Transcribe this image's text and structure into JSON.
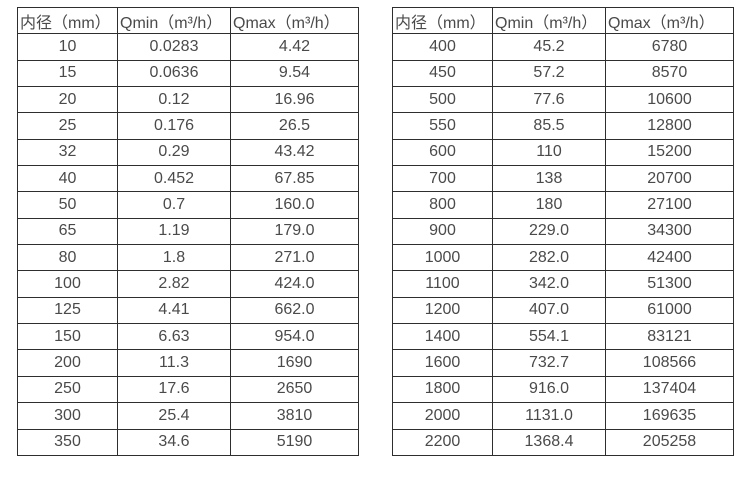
{
  "colors": {
    "text": "#4a4a4a",
    "border": "#2e2e2e",
    "background": "#ffffff"
  },
  "chart_data": [
    {
      "type": "table",
      "title": "",
      "headers": [
        "内径（mm）",
        "Qmin（m³/h）",
        "Qmax（m³/h）"
      ],
      "rows": [
        [
          "10",
          "0.0283",
          "4.42"
        ],
        [
          "15",
          "0.0636",
          "9.54"
        ],
        [
          "20",
          "0.12",
          "16.96"
        ],
        [
          "25",
          "0.176",
          "26.5"
        ],
        [
          "32",
          "0.29",
          "43.42"
        ],
        [
          "40",
          "0.452",
          "67.85"
        ],
        [
          "50",
          "0.7",
          "160.0"
        ],
        [
          "65",
          "1.19",
          "179.0"
        ],
        [
          "80",
          "1.8",
          "271.0"
        ],
        [
          "100",
          "2.82",
          "424.0"
        ],
        [
          "125",
          "4.41",
          "662.0"
        ],
        [
          "150",
          "6.63",
          "954.0"
        ],
        [
          "200",
          "11.3",
          "1690"
        ],
        [
          "250",
          "17.6",
          "2650"
        ],
        [
          "300",
          "25.4",
          "3810"
        ],
        [
          "350",
          "34.6",
          "5190"
        ]
      ]
    },
    {
      "type": "table",
      "title": "",
      "headers": [
        "内径（mm）",
        "Qmin（m³/h）",
        "Qmax（m³/h）"
      ],
      "rows": [
        [
          "400",
          "45.2",
          "6780"
        ],
        [
          "450",
          "57.2",
          "8570"
        ],
        [
          "500",
          "77.6",
          "10600"
        ],
        [
          "550",
          "85.5",
          "12800"
        ],
        [
          "600",
          "110",
          "15200"
        ],
        [
          "700",
          "138",
          "20700"
        ],
        [
          "800",
          "180",
          "27100"
        ],
        [
          "900",
          "229.0",
          "34300"
        ],
        [
          "1000",
          "282.0",
          "42400"
        ],
        [
          "1100",
          "342.0",
          "51300"
        ],
        [
          "1200",
          "407.0",
          "61000"
        ],
        [
          "1400",
          "554.1",
          "83121"
        ],
        [
          "1600",
          "732.7",
          "108566"
        ],
        [
          "1800",
          "916.0",
          "137404"
        ],
        [
          "2000",
          "1131.0",
          "169635"
        ],
        [
          "2200",
          "1368.4",
          "205258"
        ]
      ]
    }
  ]
}
